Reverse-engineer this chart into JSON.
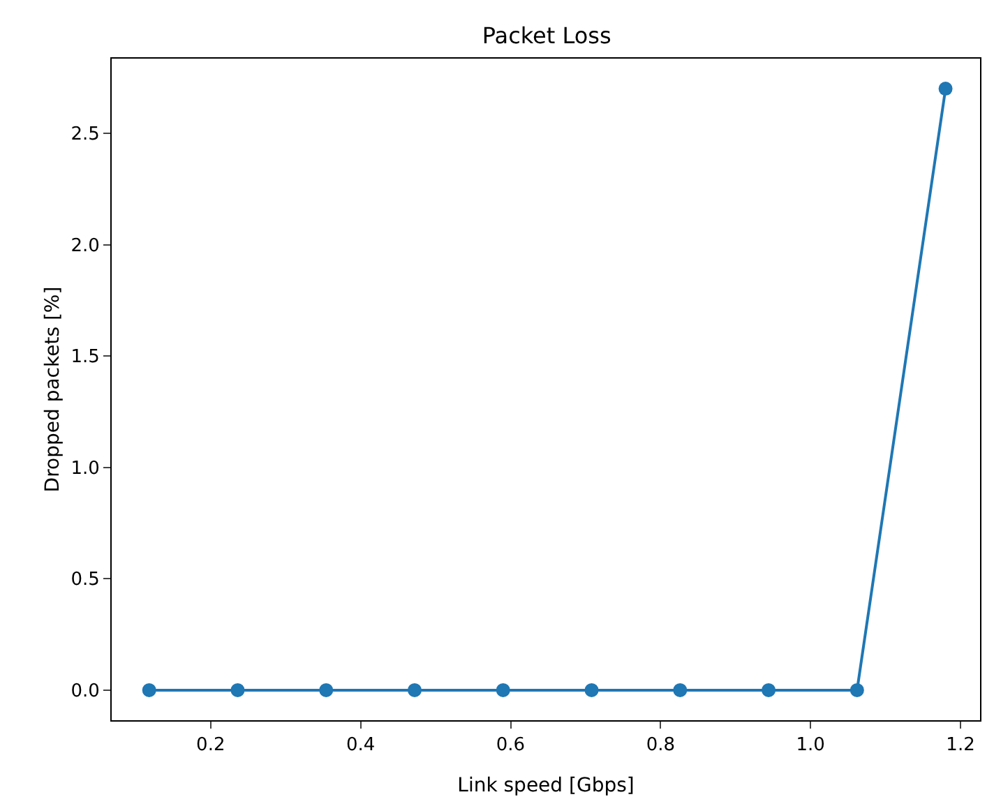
{
  "chart_data": {
    "type": "line",
    "title": "Packet Loss",
    "xlabel": "Link speed [Gbps]",
    "ylabel": "Dropped packets [%]",
    "x": [
      0.118,
      0.236,
      0.354,
      0.472,
      0.59,
      0.708,
      0.826,
      0.944,
      1.062,
      1.18
    ],
    "series": [
      {
        "color": "#1f77b4",
        "values": [
          0,
          0,
          0,
          0,
          0,
          0,
          0,
          0,
          0,
          2.7
        ]
      }
    ],
    "xlim": [
      0.068,
      1.226
    ],
    "xticks": [
      {
        "value": 0.2,
        "label": "0.2"
      },
      {
        "value": 0.4,
        "label": "0.4"
      },
      {
        "value": 0.6,
        "label": "0.6"
      },
      {
        "value": 0.8,
        "label": "0.8"
      },
      {
        "value": 1.0,
        "label": "1.0"
      },
      {
        "value": 1.2,
        "label": "1.2"
      }
    ],
    "ylim": [
      -0.135,
      2.835
    ],
    "yticks": [
      {
        "value": 0,
        "label": "0.0"
      },
      {
        "value": 0.5,
        "label": "0.5"
      },
      {
        "value": 1.0,
        "label": "1.0"
      },
      {
        "value": 1.5,
        "label": "1.5"
      },
      {
        "value": 2.0,
        "label": "2.0"
      },
      {
        "value": 2.5,
        "label": "2.5"
      }
    ],
    "marker": "circle",
    "line_style": "solid"
  }
}
